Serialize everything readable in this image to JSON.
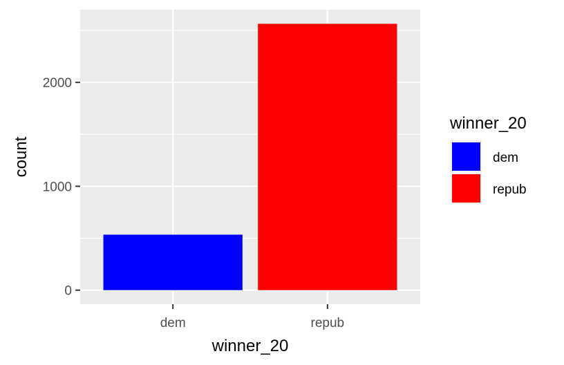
{
  "chart_data": {
    "type": "bar",
    "categories": [
      "dem",
      "repub"
    ],
    "values": [
      534,
      2564
    ],
    "fill_colors": [
      "#0000FF",
      "#FF0000"
    ],
    "xlabel": "winner_20",
    "ylabel": "count",
    "ylim": [
      -135,
      2700
    ],
    "yticks": [
      0,
      1000,
      2000
    ],
    "ytick_labels": [
      "0",
      "1000",
      "2000"
    ],
    "grid": true,
    "panel_background": "#EBEBEB",
    "grid_color": "#FFFFFF",
    "legend": {
      "title": "winner_20",
      "placement": "right",
      "entries": [
        {
          "label": "dem",
          "color": "#0000FF"
        },
        {
          "label": "repub",
          "color": "#FF0000"
        }
      ]
    }
  }
}
